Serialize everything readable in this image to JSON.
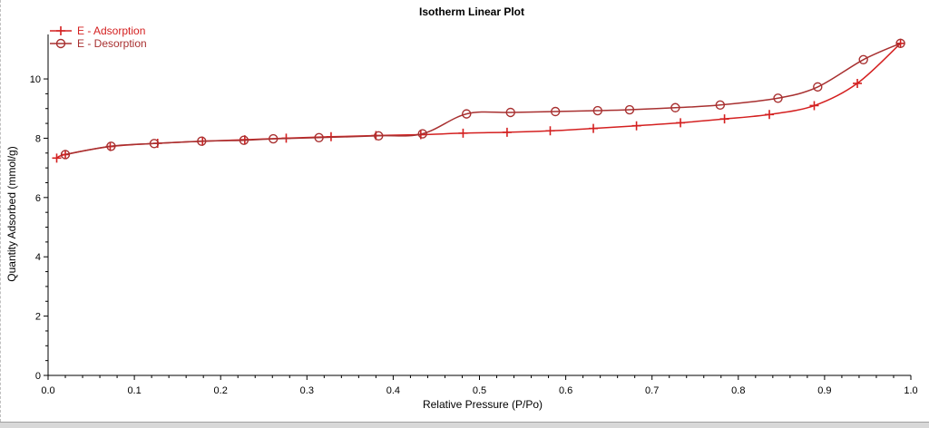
{
  "chart_data": {
    "type": "line",
    "title": "Isotherm Linear Plot",
    "xlabel": "Relative Pressure (P/Po)",
    "ylabel": "Quantity Adsorbed (mmol/g)",
    "xlim": [
      0.0,
      1.0
    ],
    "ylim": [
      0,
      11.5
    ],
    "xticks": [
      0.0,
      0.1,
      0.2,
      0.3,
      0.4,
      0.5,
      0.6,
      0.7,
      0.8,
      0.9,
      1.0
    ],
    "xtick_labels": [
      "0.0",
      "0.1",
      "0.2",
      "0.3",
      "0.4",
      "0.5",
      "0.6",
      "0.7",
      "0.8",
      "0.9",
      "1.0"
    ],
    "yticks": [
      0,
      2,
      4,
      6,
      8,
      10
    ],
    "ytick_labels": [
      "0",
      "2",
      "4",
      "6",
      "8",
      "10"
    ],
    "legend": "top-left",
    "grid": false,
    "series": [
      {
        "name": "E - Adsorption",
        "color": "#d42020",
        "marker": "plus",
        "points": [
          [
            0.01,
            7.33
          ],
          [
            0.02,
            7.45
          ],
          [
            0.072,
            7.72
          ],
          [
            0.127,
            7.83
          ],
          [
            0.179,
            7.9
          ],
          [
            0.228,
            7.95
          ],
          [
            0.276,
            8.0
          ],
          [
            0.328,
            8.05
          ],
          [
            0.38,
            8.09
          ],
          [
            0.432,
            8.12
          ],
          [
            0.481,
            8.17
          ],
          [
            0.532,
            8.2
          ],
          [
            0.582,
            8.25
          ],
          [
            0.632,
            8.33
          ],
          [
            0.682,
            8.42
          ],
          [
            0.733,
            8.52
          ],
          [
            0.784,
            8.65
          ],
          [
            0.836,
            8.8
          ],
          [
            0.888,
            9.1
          ],
          [
            0.938,
            9.85
          ],
          [
            0.988,
            11.2
          ]
        ]
      },
      {
        "name": "E - Desorption",
        "color": "#a83030",
        "marker": "circle",
        "points": [
          [
            0.988,
            11.2
          ],
          [
            0.945,
            10.65
          ],
          [
            0.892,
            9.73
          ],
          [
            0.846,
            9.35
          ],
          [
            0.779,
            9.12
          ],
          [
            0.727,
            9.03
          ],
          [
            0.674,
            8.96
          ],
          [
            0.637,
            8.93
          ],
          [
            0.588,
            8.9
          ],
          [
            0.536,
            8.87
          ],
          [
            0.485,
            8.82
          ],
          [
            0.434,
            8.15
          ],
          [
            0.383,
            8.08
          ],
          [
            0.314,
            8.02
          ],
          [
            0.261,
            7.98
          ],
          [
            0.227,
            7.93
          ],
          [
            0.178,
            7.9
          ],
          [
            0.123,
            7.82
          ],
          [
            0.073,
            7.73
          ],
          [
            0.02,
            7.45
          ]
        ]
      }
    ]
  }
}
